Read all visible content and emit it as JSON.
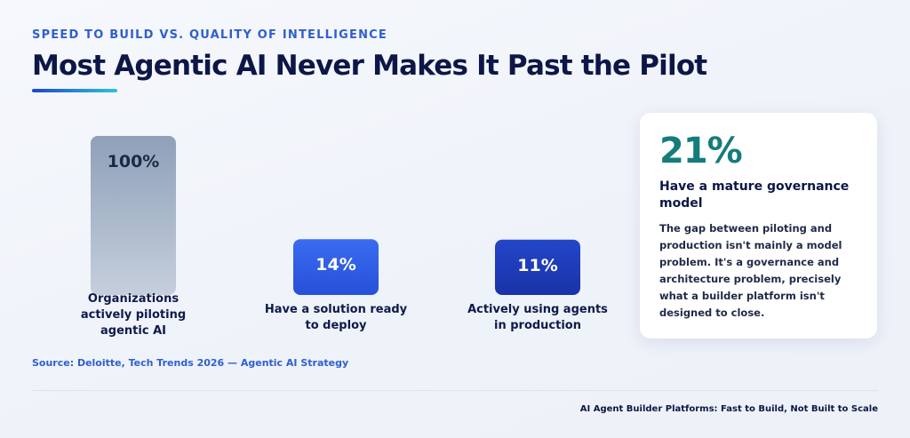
{
  "header": {
    "eyebrow": "SPEED TO BUILD VS. QUALITY OF INTELLIGENCE",
    "title": "Most Agentic AI Never Makes It Past the Pilot"
  },
  "chart_data": {
    "type": "bar",
    "categories": [
      [
        "Organizations",
        "actively piloting",
        "agentic AI"
      ],
      [
        "Have a solution ready",
        "to deploy"
      ],
      [
        "Actively using agents",
        "in production"
      ]
    ],
    "values": [
      100,
      14,
      11
    ],
    "value_labels": [
      "100%",
      "14%",
      "11%"
    ],
    "unit": "%",
    "bar_colors": [
      "#9aa9bf",
      "#2f5fe0",
      "#1d38b8"
    ],
    "title": "",
    "xlabel": "",
    "ylabel": "",
    "grid": false,
    "legend": "none"
  },
  "source": "Source: Deloitte, Tech Trends 2026 — Agentic AI Strategy",
  "card": {
    "stat": "21%",
    "heading": "Have a mature governance model",
    "body": "The gap between piloting and production isn't mainly a model problem. It's a governance and architecture problem, precisely what a builder platform isn't designed to close."
  },
  "footer": "AI Agent Builder Platforms: Fast to Build, Not Built to Scale",
  "colors": {
    "accent_blue": "#2f5fd0",
    "title_navy": "#0c1747",
    "stat_teal": "#157c7c"
  }
}
